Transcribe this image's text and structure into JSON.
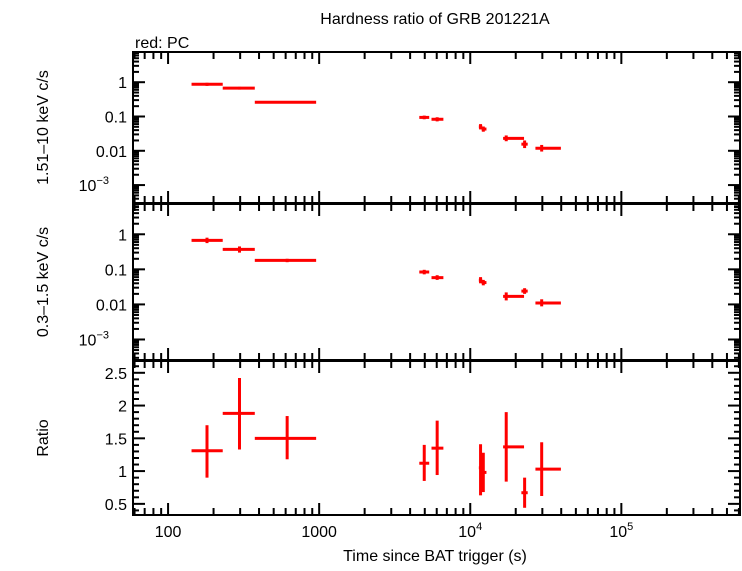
{
  "chart_data": [
    {
      "type": "scatter",
      "title": "Hardness ratio of GRB 201221A",
      "annotation": "red: PC",
      "ylabel": "1.51–10 keV c/s",
      "yscale": "log",
      "ylim": [
        0.0003,
        7.6
      ],
      "yticks": [
        {
          "v": 1,
          "label": "1"
        },
        {
          "v": 0.1,
          "label": "0.1"
        },
        {
          "v": 0.01,
          "label": "0.01"
        },
        {
          "v": 0.001,
          "label": "10",
          "sup": "−3"
        }
      ],
      "color": "#ff0000",
      "points": [
        {
          "x": 181,
          "xlo": 143,
          "xhi": 230,
          "y": 0.87,
          "ylo": 0.78,
          "yhi": 0.96
        },
        {
          "x": 297,
          "xlo": 230,
          "xhi": 375,
          "y": 0.67,
          "ylo": 0.61,
          "yhi": 0.73
        },
        {
          "x": 614,
          "xlo": 375,
          "xhi": 955,
          "y": 0.26,
          "ylo": 0.24,
          "yhi": 0.28
        },
        {
          "x": 4960,
          "xlo": 4600,
          "xhi": 5350,
          "y": 0.094,
          "ylo": 0.083,
          "yhi": 0.106
        },
        {
          "x": 6040,
          "xlo": 5540,
          "xhi": 6640,
          "y": 0.083,
          "ylo": 0.072,
          "yhi": 0.095
        },
        {
          "x": 11700,
          "xlo": 11400,
          "xhi": 12000,
          "y": 0.05,
          "ylo": 0.042,
          "yhi": 0.06
        },
        {
          "x": 12200,
          "xlo": 11900,
          "xhi": 12800,
          "y": 0.043,
          "ylo": 0.036,
          "yhi": 0.051
        },
        {
          "x": 17300,
          "xlo": 16500,
          "xhi": 22700,
          "y": 0.023,
          "ylo": 0.019,
          "yhi": 0.028
        },
        {
          "x": 22900,
          "xlo": 21800,
          "xhi": 24000,
          "y": 0.0156,
          "ylo": 0.012,
          "yhi": 0.02
        },
        {
          "x": 29700,
          "xlo": 27000,
          "xhi": 39800,
          "y": 0.0119,
          "ylo": 0.0095,
          "yhi": 0.0148
        }
      ]
    },
    {
      "type": "scatter",
      "ylabel": "0.3–1.5 keV c/s",
      "yscale": "log",
      "ylim": [
        0.00026,
        7.3
      ],
      "yticks": [
        {
          "v": 1,
          "label": "1"
        },
        {
          "v": 0.1,
          "label": "0.1"
        },
        {
          "v": 0.01,
          "label": "0.01"
        },
        {
          "v": 0.001,
          "label": "10",
          "sup": "−3"
        }
      ],
      "color": "#ff0000",
      "points": [
        {
          "x": 181,
          "xlo": 143,
          "xhi": 230,
          "y": 0.67,
          "ylo": 0.56,
          "yhi": 0.8
        },
        {
          "x": 297,
          "xlo": 230,
          "xhi": 375,
          "y": 0.37,
          "ylo": 0.3,
          "yhi": 0.45
        },
        {
          "x": 614,
          "xlo": 375,
          "xhi": 955,
          "y": 0.18,
          "ylo": 0.16,
          "yhi": 0.2
        },
        {
          "x": 4960,
          "xlo": 4600,
          "xhi": 5350,
          "y": 0.084,
          "ylo": 0.072,
          "yhi": 0.097
        },
        {
          "x": 6040,
          "xlo": 5540,
          "xhi": 6640,
          "y": 0.058,
          "ylo": 0.05,
          "yhi": 0.068
        },
        {
          "x": 11700,
          "xlo": 11400,
          "xhi": 12000,
          "y": 0.049,
          "ylo": 0.04,
          "yhi": 0.06
        },
        {
          "x": 12200,
          "xlo": 11900,
          "xhi": 12800,
          "y": 0.042,
          "ylo": 0.035,
          "yhi": 0.05
        },
        {
          "x": 17300,
          "xlo": 16500,
          "xhi": 22700,
          "y": 0.017,
          "ylo": 0.013,
          "yhi": 0.022
        },
        {
          "x": 22900,
          "xlo": 21800,
          "xhi": 24000,
          "y": 0.024,
          "ylo": 0.02,
          "yhi": 0.029
        },
        {
          "x": 29700,
          "xlo": 27000,
          "xhi": 39800,
          "y": 0.011,
          "ylo": 0.0088,
          "yhi": 0.014
        }
      ]
    },
    {
      "type": "scatter",
      "ylabel": "Ratio",
      "xlabel": "Time since BAT trigger (s)",
      "yscale": "linear",
      "ylim": [
        0.33,
        2.68
      ],
      "yticks": [
        {
          "v": 0.5,
          "label": "0.5"
        },
        {
          "v": 1,
          "label": "1"
        },
        {
          "v": 1.5,
          "label": "1.5"
        },
        {
          "v": 2,
          "label": "2"
        },
        {
          "v": 2.5,
          "label": "2.5"
        }
      ],
      "xscale": "log",
      "xlim": [
        58.6,
        610000
      ],
      "xticks": [
        {
          "v": 100,
          "label": "100"
        },
        {
          "v": 1000,
          "label": "1000"
        },
        {
          "v": 10000,
          "label": "10",
          "sup": "4"
        },
        {
          "v": 100000,
          "label": "10",
          "sup": "5"
        }
      ],
      "color": "#ff0000",
      "points": [
        {
          "x": 181,
          "xlo": 143,
          "xhi": 230,
          "y": 1.31,
          "ylo": 0.9,
          "yhi": 1.7
        },
        {
          "x": 297,
          "xlo": 230,
          "xhi": 375,
          "y": 1.88,
          "ylo": 1.33,
          "yhi": 2.42
        },
        {
          "x": 614,
          "xlo": 375,
          "xhi": 955,
          "y": 1.5,
          "ylo": 1.18,
          "yhi": 1.84
        },
        {
          "x": 4960,
          "xlo": 4600,
          "xhi": 5350,
          "y": 1.12,
          "ylo": 0.85,
          "yhi": 1.4
        },
        {
          "x": 6040,
          "xlo": 5540,
          "xhi": 6640,
          "y": 1.35,
          "ylo": 0.94,
          "yhi": 1.77
        },
        {
          "x": 11700,
          "xlo": 11400,
          "xhi": 12000,
          "y": 1.05,
          "ylo": 0.63,
          "yhi": 1.41
        },
        {
          "x": 12200,
          "xlo": 11900,
          "xhi": 12800,
          "y": 0.98,
          "ylo": 0.68,
          "yhi": 1.28
        },
        {
          "x": 17300,
          "xlo": 16500,
          "xhi": 22700,
          "y": 1.37,
          "ylo": 0.84,
          "yhi": 1.9
        },
        {
          "x": 22900,
          "xlo": 21800,
          "xhi": 24000,
          "y": 0.67,
          "ylo": 0.44,
          "yhi": 0.9
        },
        {
          "x": 29700,
          "xlo": 27000,
          "xhi": 39800,
          "y": 1.03,
          "ylo": 0.62,
          "yhi": 1.44
        }
      ]
    }
  ]
}
